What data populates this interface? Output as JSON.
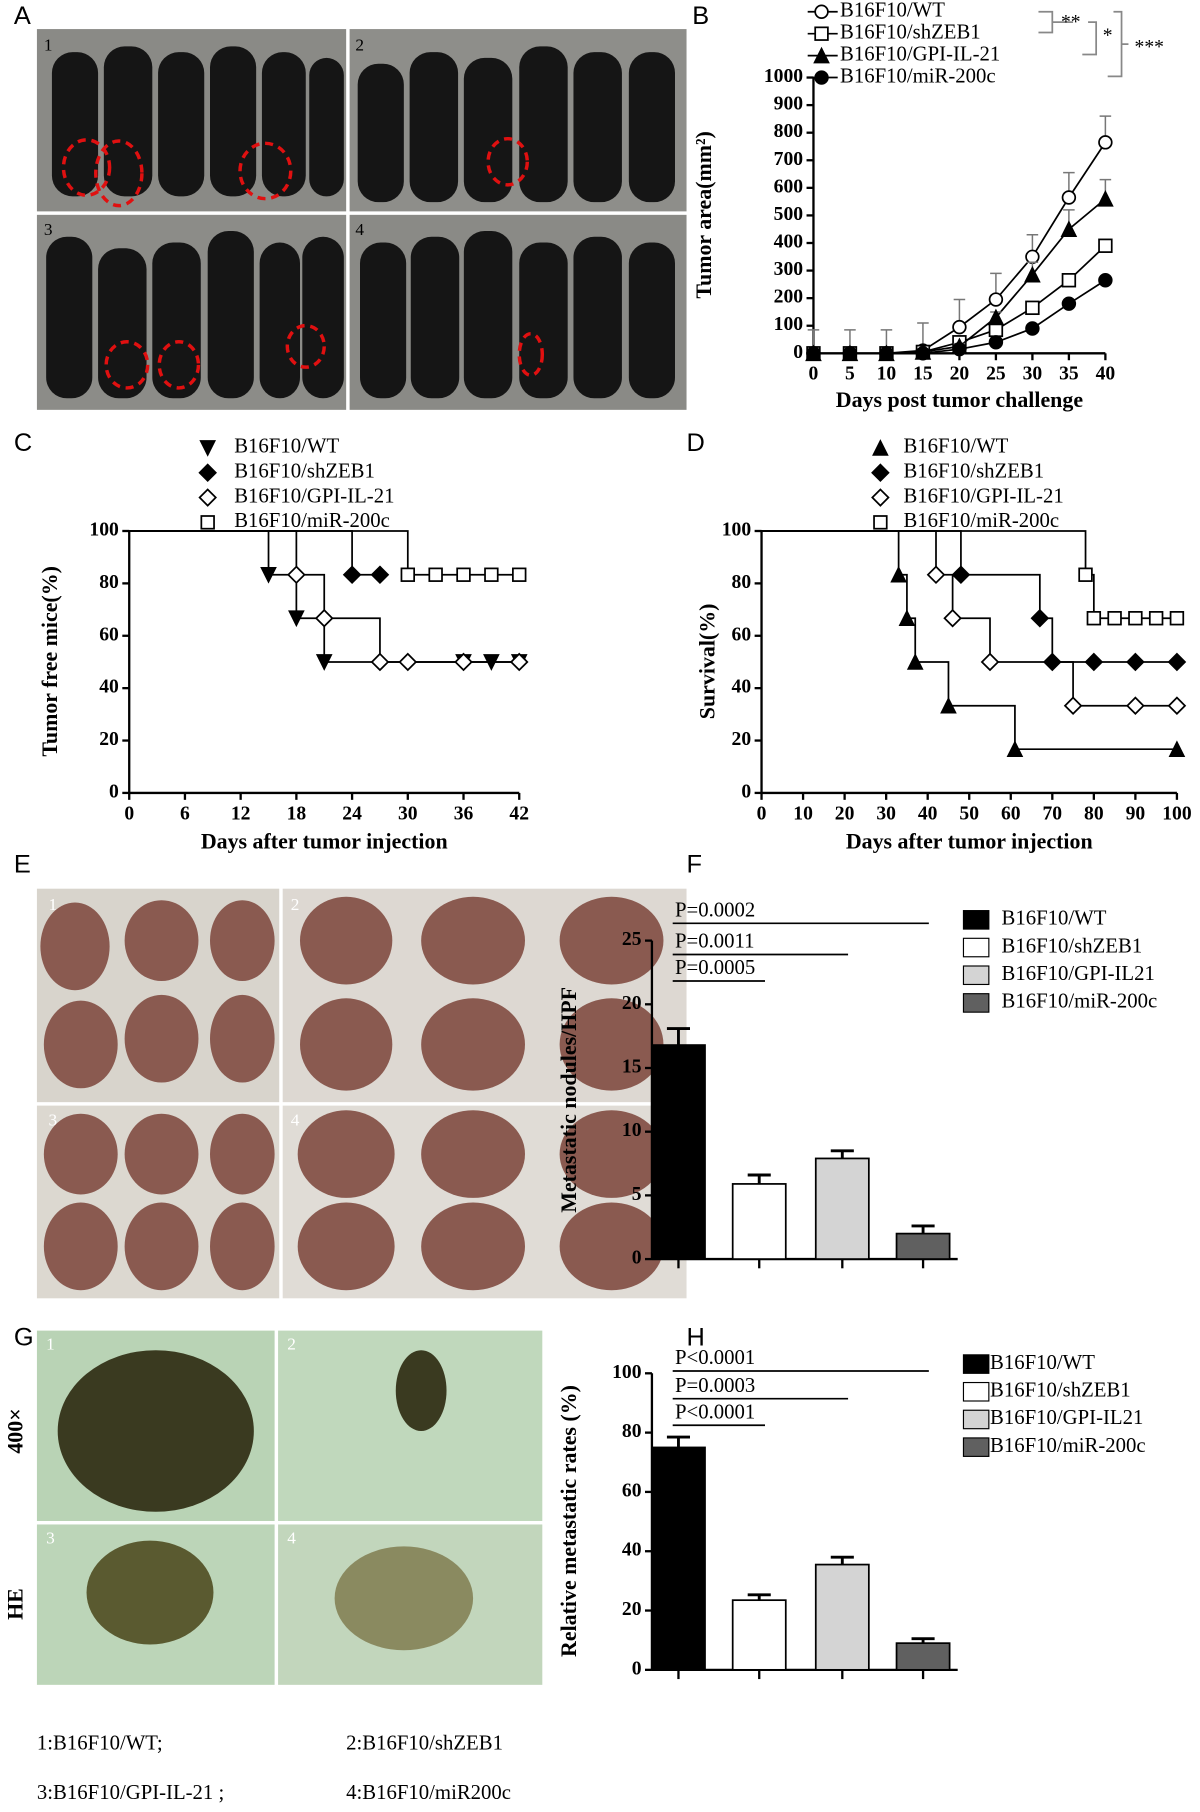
{
  "chart_data": [
    {
      "type": "line",
      "panel": "B",
      "y_label": "Tumor area(mm²)",
      "x_label": "Days post tumor challenge",
      "xlim": [
        0,
        40
      ],
      "xticks": [
        0,
        5,
        10,
        15,
        20,
        25,
        30,
        35,
        40
      ],
      "ylim": [
        0,
        1000
      ],
      "yticks": [
        0,
        100,
        200,
        300,
        400,
        500,
        600,
        700,
        800,
        900,
        1000
      ],
      "annotations": [
        "**",
        "*",
        "***"
      ],
      "x": [
        0,
        5,
        10,
        15,
        20,
        25,
        30,
        35,
        40
      ],
      "series": [
        {
          "name": "B16F10/WT",
          "color": "#000000",
          "marker": "open-circle",
          "values": [
            0,
            0,
            0,
            10,
            95,
            195,
            350,
            565,
            765
          ],
          "errors": [
            85,
            85,
            85,
            100,
            100,
            95,
            80,
            90,
            95
          ]
        },
        {
          "name": "B16F10/shZEB1",
          "color": "#000000",
          "marker": "open-square",
          "values": [
            0,
            0,
            0,
            5,
            40,
            85,
            165,
            265,
            390
          ]
        },
        {
          "name": "B16F10/GPI-IL-21",
          "color": "#000000",
          "marker": "filled-triangle",
          "values": [
            0,
            0,
            0,
            5,
            25,
            130,
            285,
            450,
            560
          ],
          "errors": [
            0,
            0,
            0,
            5,
            10,
            20,
            45,
            70,
            70
          ]
        },
        {
          "name": "B16F10/miR-200c",
          "color": "#000000",
          "marker": "filled-circle",
          "values": [
            0,
            0,
            0,
            0,
            15,
            40,
            90,
            180,
            265
          ]
        }
      ]
    },
    {
      "type": "step",
      "panel": "C",
      "y_label": "Tumor free mice(%)",
      "x_label": "Days after tumor injection",
      "xlim": [
        0,
        42
      ],
      "xticks": [
        0,
        6,
        12,
        18,
        24,
        30,
        36,
        42
      ],
      "ylim": [
        0,
        100
      ],
      "yticks": [
        0,
        20,
        40,
        60,
        80,
        100
      ],
      "series": [
        {
          "name": "B16F10/WT",
          "color": "#000000",
          "marker": "filled-triangle-down",
          "x": [
            0,
            15,
            18,
            21,
            36,
            39,
            42
          ],
          "values": [
            100,
            83.3,
            66.7,
            50,
            50,
            50,
            50
          ]
        },
        {
          "name": "B16F10/shZEB1",
          "color": "#000000",
          "marker": "filled-diamond",
          "x": [
            0,
            24,
            27
          ],
          "values": [
            100,
            83.3,
            83.3
          ]
        },
        {
          "name": "B16F10/GPI-IL-21",
          "color": "#000000",
          "marker": "open-diamond",
          "x": [
            0,
            18,
            21,
            27,
            30,
            36,
            42
          ],
          "values": [
            100,
            83.3,
            66.7,
            50,
            50,
            50,
            50
          ]
        },
        {
          "name": "B16F10/miR-200c",
          "color": "#000000",
          "marker": "open-square",
          "x": [
            0,
            30,
            33,
            36,
            39,
            42
          ],
          "values": [
            100,
            83.3,
            83.3,
            83.3,
            83.3,
            83.3
          ]
        }
      ]
    },
    {
      "type": "step",
      "panel": "D",
      "y_label": "Survival(%)",
      "x_label": "Days after tumor injection",
      "xlim": [
        0,
        100
      ],
      "xticks": [
        0,
        10,
        20,
        30,
        40,
        50,
        60,
        70,
        80,
        90,
        100
      ],
      "ylim": [
        0,
        100
      ],
      "yticks": [
        0,
        20,
        40,
        60,
        80,
        100
      ],
      "series": [
        {
          "name": "B16F10/WT",
          "color": "#000000",
          "marker": "filled-triangle",
          "x": [
            0,
            33,
            35,
            37,
            45,
            61,
            100
          ],
          "values": [
            100,
            83.3,
            66.7,
            50,
            33.3,
            16.7,
            16.7
          ]
        },
        {
          "name": "B16F10/shZEB1",
          "color": "#000000",
          "marker": "filled-diamond",
          "x": [
            0,
            48,
            67,
            70,
            80,
            90,
            100
          ],
          "values": [
            100,
            83.3,
            66.7,
            50,
            50,
            50,
            50
          ]
        },
        {
          "name": "B16F10/GPI-IL-21",
          "color": "#000000",
          "marker": "open-diamond",
          "x": [
            0,
            42,
            46,
            55,
            75,
            90,
            100
          ],
          "values": [
            100,
            83.3,
            66.7,
            50,
            33.3,
            33.3,
            33.3
          ]
        },
        {
          "name": "B16F10/miR-200c",
          "color": "#000000",
          "marker": "open-square",
          "x": [
            0,
            78,
            80,
            85,
            90,
            95,
            100
          ],
          "values": [
            100,
            83.3,
            66.7,
            66.7,
            66.7,
            66.7,
            66.7
          ]
        }
      ]
    },
    {
      "type": "bar",
      "panel": "F",
      "y_label": "Metastatic nodules/HPF",
      "ylim": [
        0,
        25
      ],
      "yticks": [
        0,
        5,
        10,
        15,
        20,
        25
      ],
      "categories": [
        "B16F10/WT",
        "B16F10/shZEB1",
        "B16F10/GPI-IL21",
        "B16F10/miR-200c"
      ],
      "colors": [
        "#000000",
        "#ffffff",
        "#d4d4d4",
        "#606060"
      ],
      "values": [
        16.8,
        5.9,
        7.9,
        2.0
      ],
      "errors": [
        1.3,
        0.7,
        0.6,
        0.6
      ],
      "annotations": [
        "P=0.0005",
        "P=0.0011",
        "P=0.0002"
      ]
    },
    {
      "type": "bar",
      "panel": "H",
      "y_label": "Relative metastatic rates (%)",
      "ylim": [
        0,
        100
      ],
      "yticks": [
        0,
        20,
        40,
        60,
        80,
        100
      ],
      "categories": [
        "B16F10/WT",
        "B16F10/shZEB1",
        "B16F10/GPI-IL21",
        "B16F10/miR-200c"
      ],
      "colors": [
        "#000000",
        "#ffffff",
        "#d4d4d4",
        "#606060"
      ],
      "values": [
        75,
        23.5,
        35.5,
        9
      ],
      "errors": [
        3.5,
        1.8,
        2.5,
        1.5
      ],
      "annotations": [
        "P<0.0001",
        "P=0.0003",
        "P<0.0001"
      ]
    }
  ],
  "photo_panels": [
    {
      "panel": "A",
      "labels": [
        "1",
        "2",
        "3",
        "4"
      ]
    },
    {
      "panel": "E",
      "labels": [
        "1",
        "2",
        "3",
        "4"
      ]
    },
    {
      "panel": "G",
      "labels": [
        "1",
        "2",
        "3",
        "4"
      ],
      "side_labels": [
        "400×",
        "HE"
      ],
      "captions": [
        "1:B16F10/WT;",
        "2:B16F10/shZEB1",
        "3:B16F10/GPI-IL-21 ;",
        "4:B16F10/miR200c"
      ]
    }
  ]
}
